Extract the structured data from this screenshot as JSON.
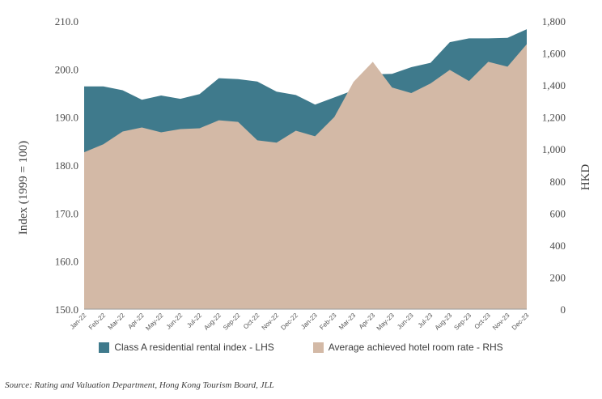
{
  "chart_data": {
    "type": "area",
    "categories": [
      "Jan-22",
      "Feb-22",
      "Mar-22",
      "Apr-22",
      "May-22",
      "Jun-22",
      "Jul-22",
      "Aug-22",
      "Sep-22",
      "Oct-22",
      "Nov-22",
      "Dec-22",
      "Jan-23",
      "Feb-23",
      "Mar-23",
      "Apr-23",
      "May-23",
      "Jun-23",
      "Jul-23",
      "Aug-23",
      "Sep-23",
      "Oct-23",
      "Nov-23",
      "Dec-23"
    ],
    "series": [
      {
        "name": "Class A residential rental index - LHS",
        "axis": "left",
        "color": "#3f7a8c",
        "values": [
          196.4,
          196.4,
          195.6,
          193.6,
          194.5,
          193.8,
          194.8,
          198.1,
          197.9,
          197.4,
          195.3,
          194.6,
          192.6,
          194.1,
          195.6,
          198.9,
          199.0,
          200.4,
          201.3,
          205.6,
          206.4,
          206.4,
          206.5,
          208.3
        ]
      },
      {
        "name": "Average achieved hotel room rate - RHS",
        "axis": "right",
        "color": "#d3b9a6",
        "values": [
          980,
          1030,
          1110,
          1135,
          1105,
          1125,
          1130,
          1180,
          1170,
          1055,
          1040,
          1115,
          1080,
          1200,
          1420,
          1545,
          1385,
          1350,
          1410,
          1495,
          1425,
          1545,
          1515,
          1655
        ]
      }
    ],
    "ylabel": "Index (1999 = 100)",
    "y2label": "HKD",
    "ylim": [
      150,
      210
    ],
    "y2lim": [
      0,
      1800
    ],
    "yticks": [
      "150.0",
      "160.0",
      "170.0",
      "180.0",
      "190.0",
      "200.0",
      "210.0"
    ],
    "y2ticks": [
      "0",
      "200",
      "400",
      "600",
      "800",
      "1,000",
      "1,200",
      "1,400",
      "1,600",
      "1,800"
    ],
    "grid": false,
    "legend_position": "bottom"
  },
  "source": "Source: Rating and Valuation Department, Hong Kong Tourism Board, JLL"
}
